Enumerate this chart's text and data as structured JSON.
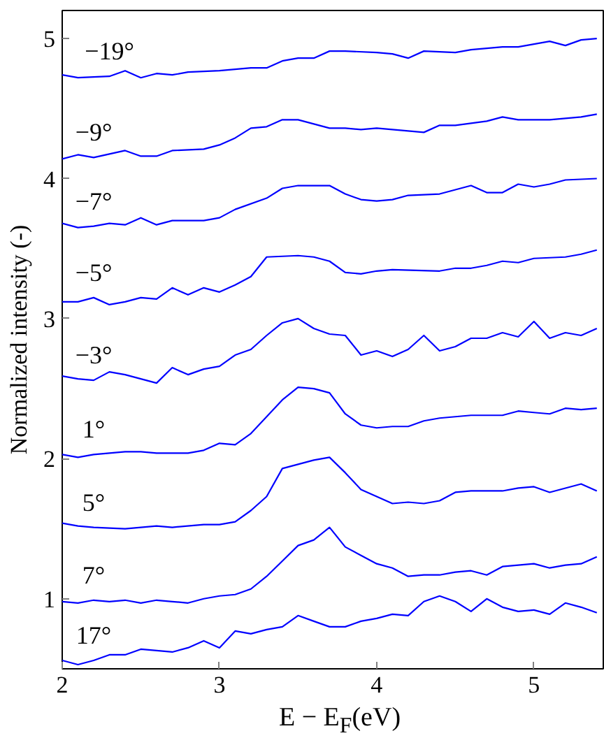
{
  "chart_data": {
    "type": "line",
    "xlabel": "E − E$_{F}$(eV)",
    "ylabel": "Normalized intensity (-)",
    "xlim": [
      2,
      5.45
    ],
    "ylim": [
      0.5,
      5.2
    ],
    "xticks": [
      2,
      3,
      4,
      5
    ],
    "yticks": [
      1,
      2,
      3,
      4,
      5
    ],
    "grid": false,
    "marker": "none",
    "line_style": "solid",
    "series": [
      {
        "name": "−19°",
        "color": "#0000ff",
        "x": [
          2.0,
          2.1,
          2.3,
          2.4,
          2.5,
          2.6,
          2.7,
          2.8,
          3.0,
          3.2,
          3.3,
          3.4,
          3.5,
          3.6,
          3.7,
          3.8,
          4.0,
          4.1,
          4.2,
          4.3,
          4.5,
          4.6,
          4.8,
          4.9,
          5.0,
          5.1,
          5.2,
          5.3,
          5.4
        ],
        "values": [
          4.74,
          4.72,
          4.73,
          4.77,
          4.72,
          4.75,
          4.74,
          4.76,
          4.77,
          4.79,
          4.79,
          4.84,
          4.86,
          4.86,
          4.91,
          4.91,
          4.9,
          4.89,
          4.86,
          4.91,
          4.9,
          4.92,
          4.94,
          4.94,
          4.96,
          4.98,
          4.95,
          4.99,
          5.0
        ]
      },
      {
        "name": "−9°",
        "color": "#0000ff",
        "x": [
          2.0,
          2.1,
          2.2,
          2.4,
          2.5,
          2.6,
          2.7,
          2.9,
          3.0,
          3.1,
          3.2,
          3.3,
          3.4,
          3.5,
          3.6,
          3.7,
          3.8,
          3.9,
          4.0,
          4.1,
          4.3,
          4.4,
          4.5,
          4.7,
          4.8,
          4.9,
          5.1,
          5.3,
          5.4
        ],
        "values": [
          4.14,
          4.17,
          4.15,
          4.2,
          4.16,
          4.16,
          4.2,
          4.21,
          4.24,
          4.29,
          4.36,
          4.37,
          4.42,
          4.42,
          4.39,
          4.36,
          4.36,
          4.35,
          4.36,
          4.35,
          4.33,
          4.38,
          4.38,
          4.41,
          4.44,
          4.42,
          4.42,
          4.44,
          4.46
        ]
      },
      {
        "name": "−7°",
        "color": "#0000ff",
        "x": [
          2.0,
          2.1,
          2.2,
          2.3,
          2.4,
          2.5,
          2.6,
          2.7,
          2.9,
          3.0,
          3.1,
          3.3,
          3.4,
          3.5,
          3.7,
          3.8,
          3.9,
          4.0,
          4.1,
          4.2,
          4.4,
          4.5,
          4.6,
          4.7,
          4.8,
          4.9,
          5.0,
          5.1,
          5.2,
          5.4
        ],
        "values": [
          3.68,
          3.65,
          3.66,
          3.68,
          3.67,
          3.72,
          3.67,
          3.7,
          3.7,
          3.72,
          3.78,
          3.86,
          3.93,
          3.95,
          3.95,
          3.89,
          3.85,
          3.84,
          3.85,
          3.88,
          3.89,
          3.92,
          3.95,
          3.9,
          3.9,
          3.96,
          3.94,
          3.96,
          3.99,
          4.0
        ]
      },
      {
        "name": "−5°",
        "color": "#0000ff",
        "x": [
          2.0,
          2.1,
          2.2,
          2.3,
          2.4,
          2.5,
          2.6,
          2.7,
          2.8,
          2.9,
          3.0,
          3.1,
          3.2,
          3.3,
          3.5,
          3.6,
          3.7,
          3.8,
          3.9,
          4.0,
          4.1,
          4.4,
          4.5,
          4.6,
          4.7,
          4.8,
          4.9,
          5.0,
          5.2,
          5.3,
          5.4
        ],
        "values": [
          3.12,
          3.12,
          3.15,
          3.1,
          3.12,
          3.15,
          3.14,
          3.22,
          3.17,
          3.22,
          3.19,
          3.24,
          3.3,
          3.44,
          3.45,
          3.44,
          3.41,
          3.33,
          3.32,
          3.34,
          3.35,
          3.34,
          3.36,
          3.36,
          3.38,
          3.41,
          3.4,
          3.43,
          3.44,
          3.46,
          3.49
        ]
      },
      {
        "name": "−3°",
        "color": "#0000ff",
        "x": [
          2.0,
          2.1,
          2.2,
          2.3,
          2.4,
          2.5,
          2.6,
          2.7,
          2.8,
          2.9,
          3.0,
          3.1,
          3.2,
          3.3,
          3.4,
          3.5,
          3.6,
          3.7,
          3.8,
          3.9,
          4.0,
          4.1,
          4.2,
          4.3,
          4.4,
          4.5,
          4.6,
          4.7,
          4.8,
          4.9,
          5.0,
          5.1,
          5.2,
          5.3,
          5.4
        ],
        "values": [
          2.59,
          2.57,
          2.56,
          2.62,
          2.6,
          2.57,
          2.54,
          2.65,
          2.6,
          2.64,
          2.66,
          2.74,
          2.78,
          2.88,
          2.97,
          3.0,
          2.93,
          2.89,
          2.88,
          2.74,
          2.77,
          2.73,
          2.78,
          2.88,
          2.77,
          2.8,
          2.86,
          2.86,
          2.9,
          2.87,
          2.98,
          2.86,
          2.9,
          2.88,
          2.93
        ]
      },
      {
        "name": "1°",
        "color": "#0000ff",
        "x": [
          2.0,
          2.1,
          2.2,
          2.3,
          2.4,
          2.5,
          2.6,
          2.7,
          2.8,
          2.9,
          3.0,
          3.1,
          3.2,
          3.3,
          3.4,
          3.5,
          3.6,
          3.7,
          3.8,
          3.9,
          4.0,
          4.1,
          4.2,
          4.3,
          4.4,
          4.5,
          4.6,
          4.7,
          4.8,
          4.9,
          5.0,
          5.1,
          5.2,
          5.3,
          5.4
        ],
        "values": [
          2.03,
          2.01,
          2.03,
          2.04,
          2.05,
          2.05,
          2.04,
          2.04,
          2.04,
          2.06,
          2.11,
          2.1,
          2.18,
          2.3,
          2.42,
          2.51,
          2.5,
          2.47,
          2.32,
          2.24,
          2.22,
          2.23,
          2.23,
          2.27,
          2.29,
          2.3,
          2.31,
          2.31,
          2.31,
          2.34,
          2.33,
          2.32,
          2.36,
          2.35,
          2.36
        ]
      },
      {
        "name": "5°",
        "color": "#0000ff",
        "x": [
          2.0,
          2.1,
          2.2,
          2.4,
          2.6,
          2.7,
          2.9,
          3.0,
          3.1,
          3.2,
          3.3,
          3.4,
          3.5,
          3.6,
          3.7,
          3.8,
          3.9,
          4.0,
          4.1,
          4.2,
          4.3,
          4.4,
          4.5,
          4.6,
          4.8,
          4.9,
          5.0,
          5.1,
          5.3,
          5.4
        ],
        "values": [
          1.54,
          1.52,
          1.51,
          1.5,
          1.52,
          1.51,
          1.53,
          1.53,
          1.55,
          1.63,
          1.73,
          1.93,
          1.96,
          1.99,
          2.01,
          1.9,
          1.78,
          1.73,
          1.68,
          1.69,
          1.68,
          1.7,
          1.76,
          1.77,
          1.77,
          1.79,
          1.8,
          1.76,
          1.82,
          1.77
        ]
      },
      {
        "name": "7°",
        "color": "#0000ff",
        "x": [
          2.0,
          2.1,
          2.2,
          2.3,
          2.4,
          2.5,
          2.6,
          2.7,
          2.8,
          2.9,
          3.0,
          3.1,
          3.2,
          3.3,
          3.4,
          3.5,
          3.6,
          3.7,
          3.8,
          3.9,
          4.0,
          4.1,
          4.2,
          4.3,
          4.4,
          4.5,
          4.6,
          4.7,
          4.8,
          5.0,
          5.1,
          5.2,
          5.3,
          5.4
        ],
        "values": [
          0.98,
          0.97,
          0.99,
          0.98,
          0.99,
          0.97,
          0.99,
          0.98,
          0.97,
          1.0,
          1.02,
          1.03,
          1.07,
          1.16,
          1.27,
          1.38,
          1.42,
          1.51,
          1.37,
          1.31,
          1.25,
          1.22,
          1.16,
          1.17,
          1.17,
          1.19,
          1.2,
          1.17,
          1.23,
          1.25,
          1.22,
          1.24,
          1.25,
          1.3
        ]
      },
      {
        "name": "17°",
        "color": "#0000ff",
        "x": [
          2.0,
          2.1,
          2.2,
          2.3,
          2.4,
          2.5,
          2.6,
          2.7,
          2.8,
          2.9,
          3.0,
          3.1,
          3.2,
          3.3,
          3.4,
          3.5,
          3.6,
          3.7,
          3.8,
          3.9,
          4.0,
          4.1,
          4.2,
          4.3,
          4.4,
          4.5,
          4.6,
          4.7,
          4.8,
          4.9,
          5.0,
          5.1,
          5.2,
          5.3,
          5.4
        ],
        "values": [
          0.56,
          0.53,
          0.56,
          0.6,
          0.6,
          0.64,
          0.63,
          0.62,
          0.65,
          0.7,
          0.65,
          0.77,
          0.75,
          0.78,
          0.8,
          0.88,
          0.84,
          0.8,
          0.8,
          0.84,
          0.86,
          0.89,
          0.88,
          0.98,
          1.02,
          0.98,
          0.91,
          1.0,
          0.94,
          0.91,
          0.92,
          0.89,
          0.97,
          0.94,
          0.9
        ]
      }
    ]
  }
}
